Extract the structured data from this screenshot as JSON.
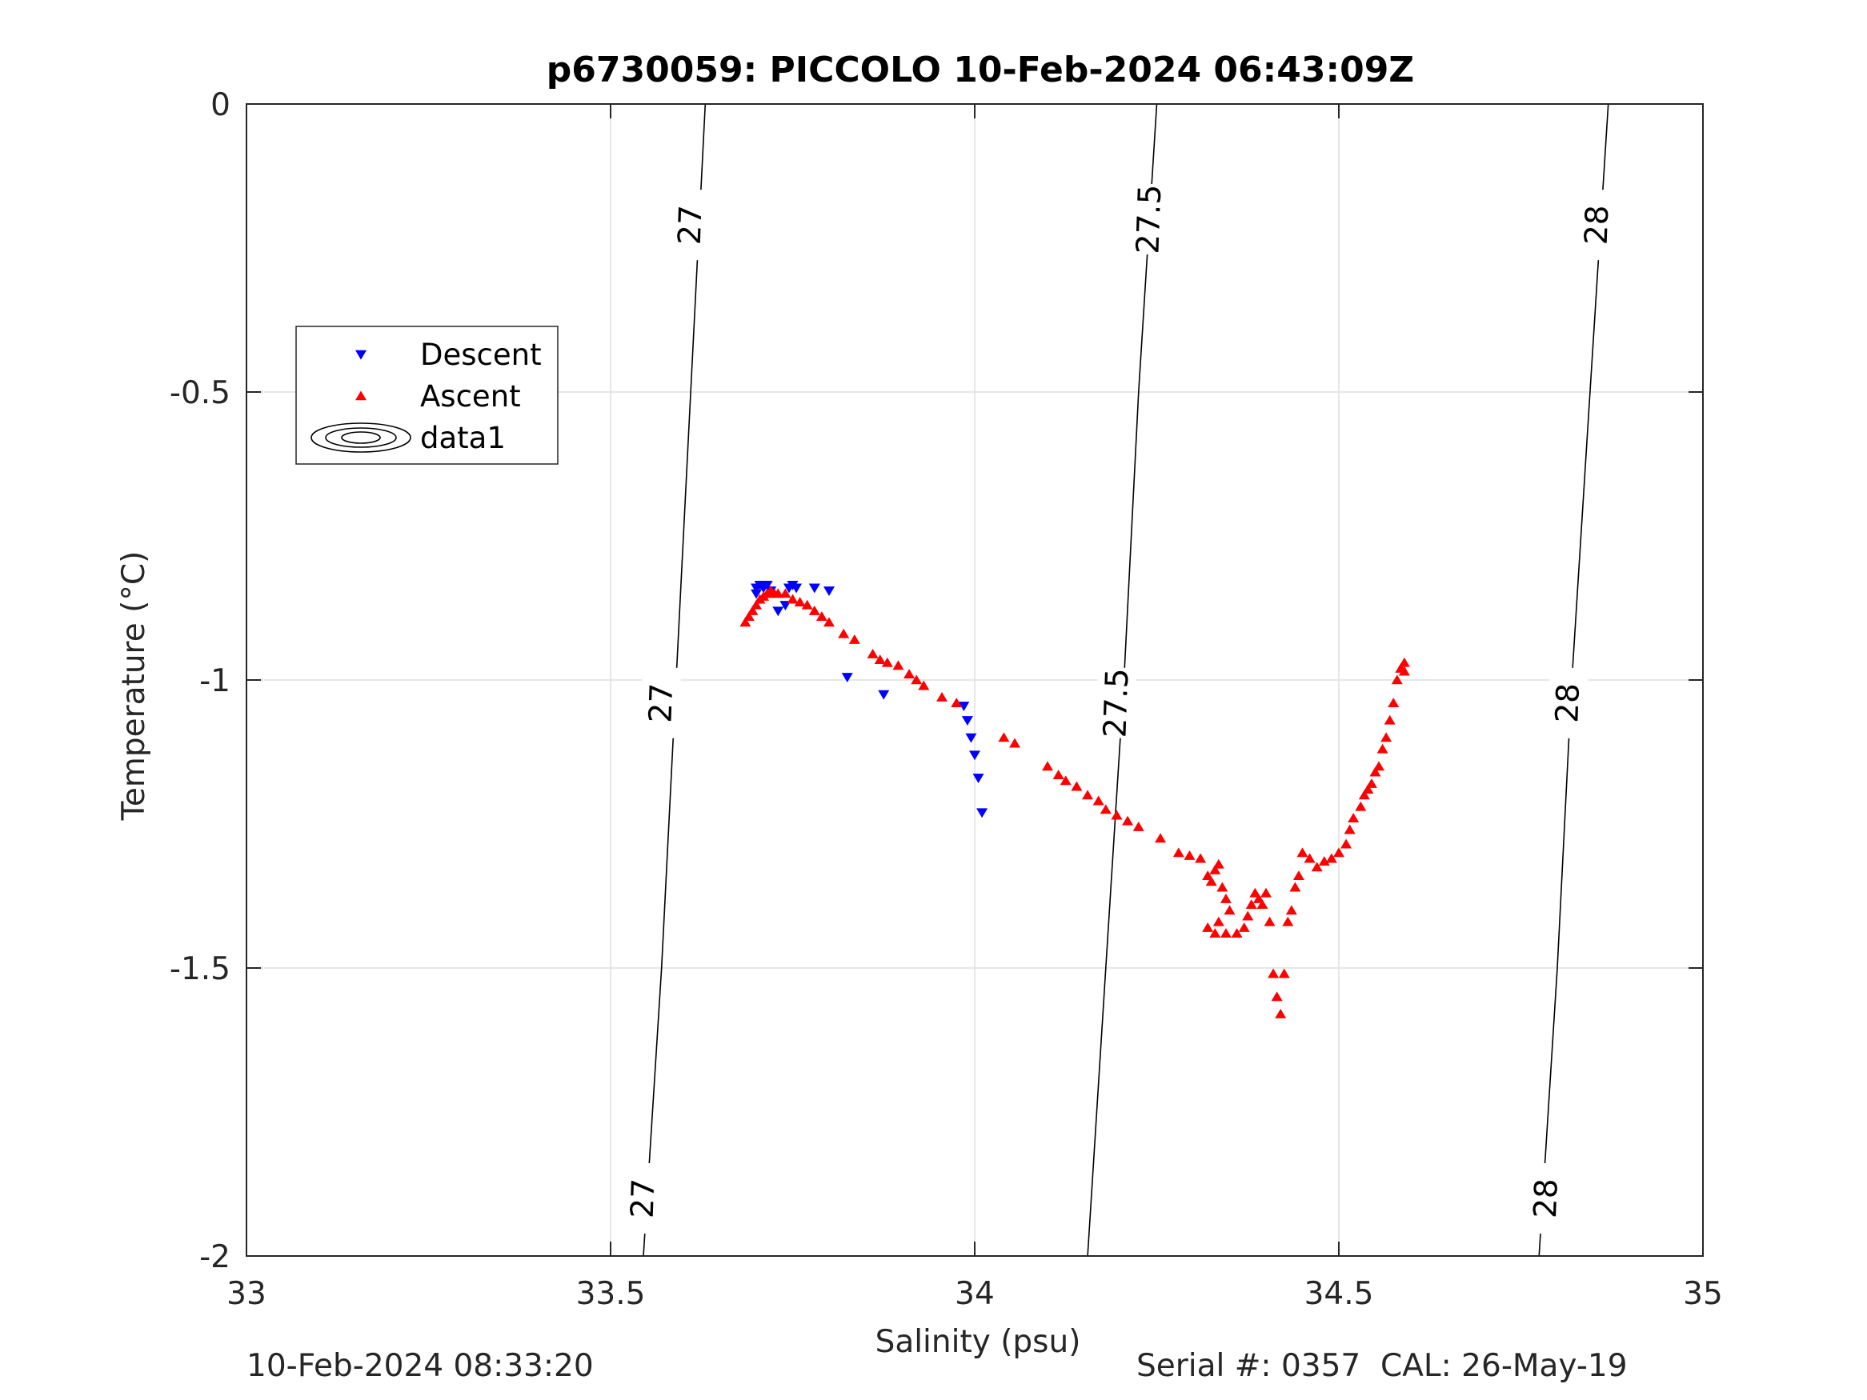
{
  "chart_data": {
    "type": "scatter",
    "title": "p6730059: PICCOLO 10-Feb-2024 06:43:09Z",
    "xlabel": "Salinity (psu)",
    "ylabel": "Temperature (°C)",
    "xlim": [
      33,
      35
    ],
    "ylim": [
      -2,
      0
    ],
    "xticks": [
      33,
      33.5,
      34,
      34.5,
      35
    ],
    "xtick_labels": [
      "33",
      "33.5",
      "34",
      "34.5",
      "35"
    ],
    "yticks": [
      0,
      -0.5,
      -1,
      -1.5,
      -2
    ],
    "ytick_labels": [
      "0",
      "-0.5",
      "-1",
      "-1.5",
      "-2"
    ],
    "grid": true,
    "legend_position": "upper-left",
    "legend": [
      {
        "label": "Descent",
        "marker": "triangle-down",
        "color": "#0000ff"
      },
      {
        "label": "Ascent",
        "marker": "triangle-up",
        "color": "#ff0000"
      },
      {
        "label": "data1",
        "marker": "contour",
        "color": "#000000"
      }
    ],
    "density_contours": [
      {
        "label": "27",
        "points": [
          [
            32.99,
            -0.17
          ],
          [
            33.0,
            0.0
          ]
        ]
      },
      {
        "label": "27",
        "points": [
          [
            33.545,
            -2.0
          ],
          [
            33.57,
            -1.5
          ],
          [
            33.59,
            -1.0
          ],
          [
            33.61,
            -0.5
          ],
          [
            33.63,
            0.0
          ]
        ]
      },
      {
        "label": "27.5",
        "points": [
          [
            34.155,
            -2.0
          ],
          [
            34.18,
            -1.5
          ],
          [
            34.205,
            -1.0
          ],
          [
            34.225,
            -0.5
          ],
          [
            34.25,
            0.0
          ]
        ]
      },
      {
        "label": "28",
        "points": [
          [
            34.775,
            -2.0
          ],
          [
            34.8,
            -1.5
          ],
          [
            34.82,
            -1.0
          ],
          [
            34.845,
            -0.5
          ],
          [
            34.87,
            0.0
          ]
        ]
      }
    ],
    "contour_labels": [
      {
        "text": "27",
        "s": 33.61,
        "t": -0.21
      },
      {
        "text": "27",
        "s": 33.57,
        "t": -1.04
      },
      {
        "text": "27",
        "s": 33.545,
        "t": -1.9
      },
      {
        "text": "27.5",
        "s": 34.24,
        "t": -0.2
      },
      {
        "text": "27.5",
        "s": 34.195,
        "t": -1.04
      },
      {
        "text": "28",
        "s": 34.855,
        "t": -0.21
      },
      {
        "text": "28",
        "s": 34.815,
        "t": -1.04
      },
      {
        "text": "28",
        "s": 34.785,
        "t": -1.9
      }
    ],
    "series": [
      {
        "name": "Descent",
        "marker": "triangle-down",
        "color": "#0000ff",
        "points": [
          [
            33.7,
            -0.84
          ],
          [
            33.705,
            -0.835
          ],
          [
            33.71,
            -0.84
          ],
          [
            33.715,
            -0.835
          ],
          [
            33.72,
            -0.845
          ],
          [
            33.7,
            -0.85
          ],
          [
            33.73,
            -0.88
          ],
          [
            33.74,
            -0.87
          ],
          [
            33.745,
            -0.84
          ],
          [
            33.75,
            -0.835
          ],
          [
            33.755,
            -0.84
          ],
          [
            33.78,
            -0.84
          ],
          [
            33.8,
            -0.845
          ],
          [
            33.825,
            -0.995
          ],
          [
            33.875,
            -1.025
          ],
          [
            33.985,
            -1.045
          ],
          [
            33.99,
            -1.07
          ],
          [
            33.995,
            -1.1
          ],
          [
            34.0,
            -1.13
          ],
          [
            34.005,
            -1.17
          ],
          [
            34.01,
            -1.23
          ]
        ]
      },
      {
        "name": "Ascent",
        "marker": "triangle-up",
        "color": "#ff0000",
        "points": [
          [
            33.685,
            -0.9
          ],
          [
            33.69,
            -0.89
          ],
          [
            33.695,
            -0.88
          ],
          [
            33.7,
            -0.87
          ],
          [
            33.705,
            -0.86
          ],
          [
            33.71,
            -0.855
          ],
          [
            33.715,
            -0.85
          ],
          [
            33.72,
            -0.845
          ],
          [
            33.725,
            -0.85
          ],
          [
            33.73,
            -0.85
          ],
          [
            33.74,
            -0.85
          ],
          [
            33.75,
            -0.86
          ],
          [
            33.76,
            -0.865
          ],
          [
            33.77,
            -0.87
          ],
          [
            33.78,
            -0.88
          ],
          [
            33.79,
            -0.89
          ],
          [
            33.8,
            -0.9
          ],
          [
            33.82,
            -0.92
          ],
          [
            33.835,
            -0.93
          ],
          [
            33.86,
            -0.955
          ],
          [
            33.87,
            -0.965
          ],
          [
            33.88,
            -0.97
          ],
          [
            33.895,
            -0.975
          ],
          [
            33.91,
            -0.99
          ],
          [
            33.92,
            -1.0
          ],
          [
            33.93,
            -1.01
          ],
          [
            33.955,
            -1.03
          ],
          [
            33.975,
            -1.04
          ],
          [
            34.04,
            -1.1
          ],
          [
            34.055,
            -1.11
          ],
          [
            34.1,
            -1.15
          ],
          [
            34.115,
            -1.165
          ],
          [
            34.125,
            -1.175
          ],
          [
            34.14,
            -1.185
          ],
          [
            34.155,
            -1.2
          ],
          [
            34.17,
            -1.21
          ],
          [
            34.18,
            -1.225
          ],
          [
            34.195,
            -1.235
          ],
          [
            34.21,
            -1.245
          ],
          [
            34.225,
            -1.255
          ],
          [
            34.255,
            -1.275
          ],
          [
            34.28,
            -1.3
          ],
          [
            34.295,
            -1.305
          ],
          [
            34.31,
            -1.31
          ],
          [
            34.32,
            -1.34
          ],
          [
            34.325,
            -1.35
          ],
          [
            34.33,
            -1.33
          ],
          [
            34.335,
            -1.32
          ],
          [
            34.34,
            -1.36
          ],
          [
            34.345,
            -1.38
          ],
          [
            34.35,
            -1.4
          ],
          [
            34.335,
            -1.42
          ],
          [
            34.32,
            -1.43
          ],
          [
            34.33,
            -1.44
          ],
          [
            34.345,
            -1.44
          ],
          [
            34.36,
            -1.44
          ],
          [
            34.37,
            -1.43
          ],
          [
            34.375,
            -1.41
          ],
          [
            34.38,
            -1.39
          ],
          [
            34.385,
            -1.37
          ],
          [
            34.39,
            -1.38
          ],
          [
            34.395,
            -1.39
          ],
          [
            34.4,
            -1.37
          ],
          [
            34.405,
            -1.42
          ],
          [
            34.41,
            -1.51
          ],
          [
            34.415,
            -1.55
          ],
          [
            34.42,
            -1.58
          ],
          [
            34.425,
            -1.51
          ],
          [
            34.43,
            -1.42
          ],
          [
            34.435,
            -1.4
          ],
          [
            34.44,
            -1.36
          ],
          [
            34.445,
            -1.34
          ],
          [
            34.45,
            -1.3
          ],
          [
            34.46,
            -1.31
          ],
          [
            34.47,
            -1.325
          ],
          [
            34.48,
            -1.315
          ],
          [
            34.49,
            -1.31
          ],
          [
            34.5,
            -1.3
          ],
          [
            34.51,
            -1.285
          ],
          [
            34.515,
            -1.26
          ],
          [
            34.52,
            -1.24
          ],
          [
            34.53,
            -1.22
          ],
          [
            34.535,
            -1.2
          ],
          [
            34.54,
            -1.19
          ],
          [
            34.545,
            -1.18
          ],
          [
            34.55,
            -1.16
          ],
          [
            34.555,
            -1.15
          ],
          [
            34.56,
            -1.12
          ],
          [
            34.565,
            -1.1
          ],
          [
            34.57,
            -1.07
          ],
          [
            34.575,
            -1.04
          ],
          [
            34.58,
            -1.0
          ],
          [
            34.585,
            -0.98
          ],
          [
            34.59,
            -0.97
          ],
          [
            34.59,
            -0.985
          ]
        ]
      }
    ]
  },
  "footer": {
    "left": "10-Feb-2024 08:33:20",
    "right": "Serial #: 0357  CAL: 26-May-19"
  }
}
